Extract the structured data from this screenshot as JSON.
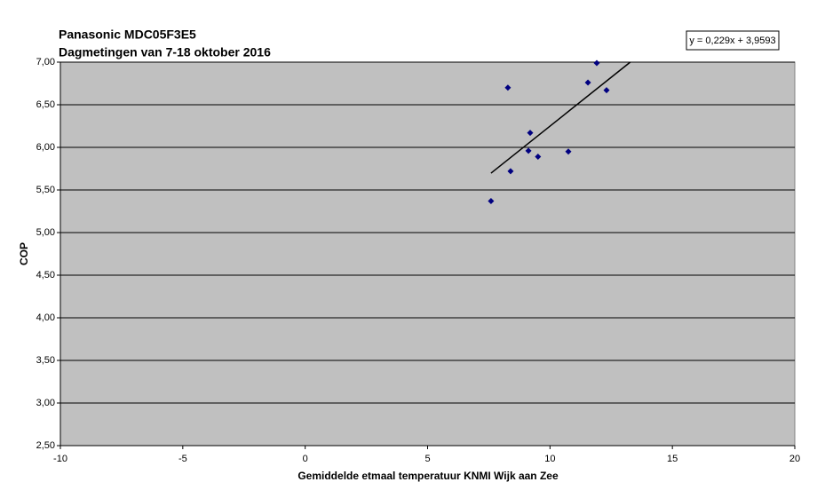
{
  "chart_data": {
    "type": "scatter",
    "title": "Panasonic MDC05F3E5",
    "subtitle": "Dagmetingen van 7-18 oktober 2016",
    "x_label": "Gemiddelde etmaal temperatuur KNMI Wijk aan Zee",
    "y_label": "COP",
    "series": [
      {
        "color": "#000080",
        "x": [
          8.28,
          8.39,
          7.59,
          9.19,
          9.12,
          9.51,
          10.75,
          11.55,
          11.91,
          12.31
        ],
        "values": [
          6.7,
          5.72,
          5.37,
          6.17,
          5.96,
          5.89,
          5.95,
          6.76,
          6.99,
          6.67
        ]
      }
    ],
    "trendline": {
      "label": "y = 0,229x + 3,9593",
      "slope": 0.229,
      "intercept": 3.9593,
      "color": "#000000"
    },
    "xlim": [
      -10,
      20
    ],
    "xticks": [
      -10,
      -5,
      0,
      5,
      10,
      15,
      20
    ],
    "ylim": [
      2.5,
      7.0
    ],
    "yticks": [
      {
        "value": 2.5,
        "label": "2,50"
      },
      {
        "value": 3.0,
        "label": "3,00"
      },
      {
        "value": 3.5,
        "label": "3,50"
      },
      {
        "value": 4.0,
        "label": "4,00"
      },
      {
        "value": 4.5,
        "label": "4,50"
      },
      {
        "value": 5.0,
        "label": "5,00"
      },
      {
        "value": 5.5,
        "label": "5,50"
      },
      {
        "value": 6.0,
        "label": "6,00"
      },
      {
        "value": 6.5,
        "label": "6,50"
      },
      {
        "value": 7.0,
        "label": "7,00"
      }
    ],
    "grid": true,
    "plot_background": "#c0c0c0"
  }
}
